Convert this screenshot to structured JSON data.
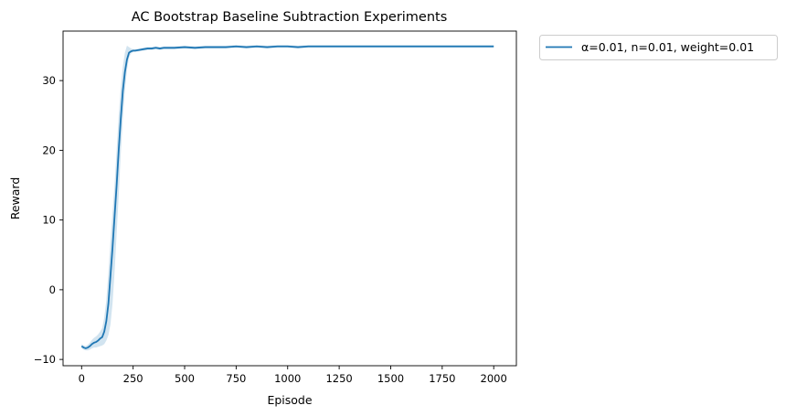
{
  "chart_data": {
    "type": "line",
    "title": "AC Bootstrap Baseline Subtraction Experiments",
    "xlabel": "Episode",
    "ylabel": "Reward",
    "xlim": [
      -90,
      2110
    ],
    "ylim": [
      -10.9,
      37.1
    ],
    "xticks": [
      0,
      250,
      500,
      750,
      1000,
      1250,
      1500,
      1750,
      2000
    ],
    "yticks": [
      -10,
      0,
      10,
      20,
      30
    ],
    "grid": false,
    "legend_position": "outside-upper-right",
    "series": [
      {
        "name": "α=0.01, n=0.01, weight=0.01",
        "color": "#1f77b4",
        "x": [
          0,
          10,
          20,
          30,
          40,
          50,
          60,
          70,
          80,
          90,
          100,
          110,
          120,
          130,
          140,
          150,
          160,
          170,
          180,
          190,
          200,
          210,
          220,
          230,
          240,
          250,
          260,
          280,
          300,
          320,
          340,
          360,
          380,
          400,
          420,
          450,
          500,
          550,
          600,
          650,
          700,
          750,
          800,
          850,
          900,
          950,
          1000,
          1050,
          1100,
          1150,
          1200,
          1250,
          1300,
          1350,
          1400,
          1450,
          1500,
          1550,
          1600,
          1650,
          1700,
          1750,
          1800,
          1850,
          1900,
          1950,
          2000
        ],
        "y": [
          -8.1,
          -8.3,
          -8.4,
          -8.3,
          -8.1,
          -7.8,
          -7.6,
          -7.5,
          -7.3,
          -7.0,
          -6.8,
          -6.0,
          -4.5,
          -2.0,
          2.0,
          6.0,
          10.5,
          15.0,
          20.0,
          24.5,
          28.5,
          31.2,
          33.0,
          34.0,
          34.2,
          34.3,
          34.3,
          34.4,
          34.5,
          34.6,
          34.6,
          34.7,
          34.6,
          34.7,
          34.7,
          34.7,
          34.8,
          34.7,
          34.8,
          34.8,
          34.8,
          34.9,
          34.8,
          34.9,
          34.8,
          34.9,
          34.9,
          34.8,
          34.9,
          34.9,
          34.9,
          34.9,
          34.9,
          34.9,
          34.9,
          34.9,
          34.9,
          34.9,
          34.9,
          34.9,
          34.9,
          34.9,
          34.9,
          34.9,
          34.9,
          34.9,
          34.9
        ],
        "band_lower": [
          -8.4,
          -8.6,
          -8.7,
          -8.7,
          -8.6,
          -8.4,
          -8.3,
          -8.3,
          -8.2,
          -8.1,
          -8.0,
          -7.8,
          -7.3,
          -6.5,
          -5.0,
          -2.0,
          2.5,
          8.0,
          13.5,
          19.5,
          24.5,
          28.5,
          31.5,
          33.3,
          33.9,
          34.1,
          34.1,
          34.2,
          34.3,
          34.4,
          34.4,
          34.5,
          34.4,
          34.5,
          34.5,
          34.5,
          34.6,
          34.5,
          34.6,
          34.6,
          34.6,
          34.7,
          34.6,
          34.7,
          34.6,
          34.7,
          34.7,
          34.6,
          34.7,
          34.7,
          34.7,
          34.7,
          34.7,
          34.7,
          34.7,
          34.7,
          34.7,
          34.7,
          34.7,
          34.7,
          34.7,
          34.7,
          34.7,
          34.7,
          34.7,
          34.7,
          34.7
        ],
        "band_upper": [
          -7.8,
          -8.0,
          -8.1,
          -7.9,
          -7.6,
          -7.2,
          -6.9,
          -6.7,
          -6.4,
          -6.0,
          -5.5,
          -4.0,
          -1.5,
          2.5,
          7.0,
          11.0,
          15.0,
          20.0,
          25.0,
          29.0,
          32.0,
          34.0,
          35.0,
          34.8,
          34.6,
          34.5,
          34.5,
          34.6,
          34.7,
          34.8,
          34.8,
          34.9,
          34.8,
          34.9,
          34.9,
          34.9,
          35.0,
          34.9,
          35.0,
          35.0,
          35.0,
          35.1,
          35.0,
          35.1,
          35.0,
          35.1,
          35.1,
          35.0,
          35.1,
          35.1,
          35.1,
          35.1,
          35.1,
          35.1,
          35.1,
          35.1,
          35.1,
          35.1,
          35.1,
          35.1,
          35.1,
          35.1,
          35.1,
          35.1,
          35.1,
          35.1,
          35.1
        ]
      }
    ]
  }
}
